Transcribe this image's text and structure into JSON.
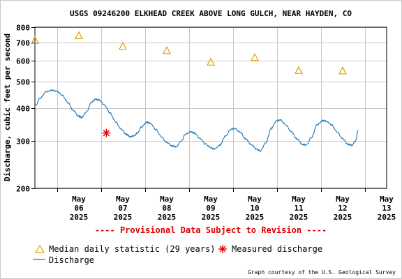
{
  "chart_data": {
    "type": "line",
    "title": "USGS 09246200 ELKHEAD CREEK ABOVE LONG GULCH, NEAR HAYDEN, CO",
    "ylabel": "Discharge, cubic feet per second",
    "yscale": "log",
    "ylim": [
      200,
      800
    ],
    "yticks": [
      200,
      300,
      400,
      500,
      600,
      700,
      800
    ],
    "xlim": [
      "2025-05-05T12:00",
      "2025-05-13T12:00"
    ],
    "xticks": [
      {
        "date": "2025-05-06",
        "line1": "May",
        "line2": "06",
        "line3": "2025"
      },
      {
        "date": "2025-05-07",
        "line1": "May",
        "line2": "07",
        "line3": "2025"
      },
      {
        "date": "2025-05-08",
        "line1": "May",
        "line2": "08",
        "line3": "2025"
      },
      {
        "date": "2025-05-09",
        "line1": "May",
        "line2": "09",
        "line3": "2025"
      },
      {
        "date": "2025-05-10",
        "line1": "May",
        "line2": "10",
        "line3": "2025"
      },
      {
        "date": "2025-05-11",
        "line1": "May",
        "line2": "11",
        "line3": "2025"
      },
      {
        "date": "2025-05-12",
        "line1": "May",
        "line2": "12",
        "line3": "2025"
      },
      {
        "date": "2025-05-13",
        "line1": "May",
        "line2": "13",
        "line3": "2025"
      }
    ],
    "grid": true,
    "provisional_note": "---- Provisional Data Subject to Revision ----",
    "series": [
      {
        "name": "Discharge",
        "kind": "line",
        "color": "#1f77b4",
        "points": [
          [
            "2025-05-05T12:00",
            405
          ],
          [
            "2025-05-05T15:00",
            435
          ],
          [
            "2025-05-05T18:00",
            458
          ],
          [
            "2025-05-05T21:00",
            465
          ],
          [
            "2025-05-06T00:00",
            462
          ],
          [
            "2025-05-06T03:00",
            445
          ],
          [
            "2025-05-06T06:00",
            418
          ],
          [
            "2025-05-06T09:00",
            390
          ],
          [
            "2025-05-06T12:00",
            372
          ],
          [
            "2025-05-06T13:30",
            368
          ],
          [
            "2025-05-06T16:00",
            385
          ],
          [
            "2025-05-06T19:00",
            420
          ],
          [
            "2025-05-06T21:00",
            430
          ],
          [
            "2025-05-06T23:00",
            428
          ],
          [
            "2025-05-07T02:00",
            410
          ],
          [
            "2025-05-07T05:00",
            382
          ],
          [
            "2025-05-07T08:00",
            355
          ],
          [
            "2025-05-07T11:00",
            333
          ],
          [
            "2025-05-07T14:00",
            318
          ],
          [
            "2025-05-07T16:00",
            312
          ],
          [
            "2025-05-07T18:00",
            314
          ],
          [
            "2025-05-07T20:00",
            322
          ],
          [
            "2025-05-07T22:00",
            338
          ],
          [
            "2025-05-08T01:00",
            353
          ],
          [
            "2025-05-08T03:00",
            350
          ],
          [
            "2025-05-08T06:00",
            332
          ],
          [
            "2025-05-08T09:00",
            312
          ],
          [
            "2025-05-08T12:00",
            296
          ],
          [
            "2025-05-08T15:00",
            288
          ],
          [
            "2025-05-08T17:00",
            286
          ],
          [
            "2025-05-08T20:00",
            300
          ],
          [
            "2025-05-08T22:00",
            318
          ],
          [
            "2025-05-09T01:00",
            325
          ],
          [
            "2025-05-09T03:00",
            322
          ],
          [
            "2025-05-09T06:00",
            308
          ],
          [
            "2025-05-09T09:00",
            293
          ],
          [
            "2025-05-09T12:00",
            284
          ],
          [
            "2025-05-09T14:00",
            280
          ],
          [
            "2025-05-09T17:00",
            290
          ],
          [
            "2025-05-09T20:00",
            314
          ],
          [
            "2025-05-09T23:00",
            332
          ],
          [
            "2025-05-10T01:00",
            335
          ],
          [
            "2025-05-10T04:00",
            324
          ],
          [
            "2025-05-10T07:00",
            306
          ],
          [
            "2025-05-10T10:00",
            292
          ],
          [
            "2025-05-10T13:00",
            280
          ],
          [
            "2025-05-10T15:00",
            276
          ],
          [
            "2025-05-10T18:00",
            295
          ],
          [
            "2025-05-10T21:00",
            335
          ],
          [
            "2025-05-11T00:00",
            358
          ],
          [
            "2025-05-11T02:00",
            360
          ],
          [
            "2025-05-11T05:00",
            345
          ],
          [
            "2025-05-11T08:00",
            325
          ],
          [
            "2025-05-11T11:00",
            306
          ],
          [
            "2025-05-11T14:00",
            292
          ],
          [
            "2025-05-11T16:00",
            290
          ],
          [
            "2025-05-11T19:00",
            310
          ],
          [
            "2025-05-11T22:00",
            345
          ],
          [
            "2025-05-12T01:00",
            358
          ],
          [
            "2025-05-12T03:00",
            357
          ],
          [
            "2025-05-12T06:00",
            345
          ],
          [
            "2025-05-12T09:00",
            325
          ],
          [
            "2025-05-12T12:00",
            306
          ],
          [
            "2025-05-12T15:00",
            292
          ],
          [
            "2025-05-12T17:00",
            290
          ],
          [
            "2025-05-12T19:00",
            300
          ],
          [
            "2025-05-12T20:30",
            330
          ]
        ]
      },
      {
        "name": "Median daily statistic (29 years)",
        "kind": "marker-triangle",
        "color": "#e0a000",
        "points": [
          [
            "2025-05-05T12:00",
            715
          ],
          [
            "2025-05-06T12:00",
            745
          ],
          [
            "2025-05-07T12:00",
            680
          ],
          [
            "2025-05-08T12:00",
            655
          ],
          [
            "2025-05-09T12:00",
            593
          ],
          [
            "2025-05-10T12:00",
            617
          ],
          [
            "2025-05-11T12:00",
            552
          ],
          [
            "2025-05-12T12:00",
            550
          ]
        ]
      },
      {
        "name": "Measured discharge",
        "kind": "marker-asterisk",
        "color": "#dd0000",
        "points": [
          [
            "2025-05-07T03:00",
            322
          ]
        ]
      }
    ]
  },
  "legend": {
    "median_label": "Median daily statistic (29 years)",
    "measured_label": "Measured discharge",
    "discharge_label": "Discharge"
  },
  "credit": "Graph courtesy of the U.S. Geological Survey"
}
